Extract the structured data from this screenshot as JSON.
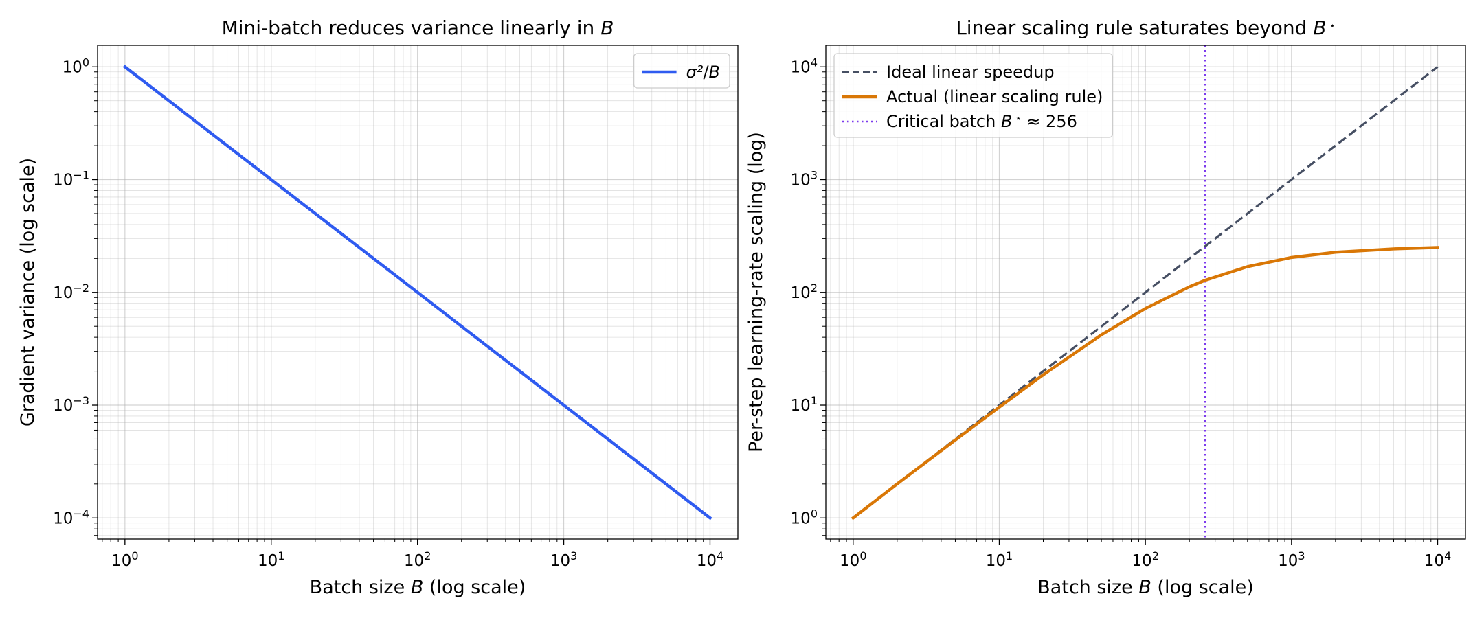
{
  "chart_data": [
    {
      "type": "line",
      "title": "Mini-batch reduces variance linearly in B",
      "xlabel": "Batch size B (log scale)",
      "ylabel": "Gradient variance (log scale)",
      "xscale": "log",
      "yscale": "log",
      "xlim": [
        0.65,
        15500
      ],
      "ylim": [
        6.5e-05,
        1.55
      ],
      "xticks": [
        1,
        10,
        100,
        1000,
        10000
      ],
      "yticks": [
        0.0001,
        0.001,
        0.01,
        0.1,
        1
      ],
      "grid": true,
      "legend_position": "top-right",
      "series": [
        {
          "name": "σ²/B",
          "color": "#2f5bf0",
          "style": "solid",
          "x": [
            1,
            10,
            100,
            1000,
            10000
          ],
          "y": [
            1,
            0.1,
            0.01,
            0.001,
            0.0001
          ]
        }
      ]
    },
    {
      "type": "line",
      "title": "Linear scaling rule saturates beyond B*",
      "xlabel": "Batch size B (log scale)",
      "ylabel": "Per-step learning-rate scaling (log)",
      "xscale": "log",
      "yscale": "log",
      "xlim": [
        0.65,
        15500
      ],
      "ylim": [
        0.65,
        15500
      ],
      "xticks": [
        1,
        10,
        100,
        1000,
        10000
      ],
      "yticks": [
        1,
        10,
        100,
        1000,
        10000
      ],
      "grid": true,
      "legend_position": "top-left",
      "series": [
        {
          "name": "Ideal linear speedup",
          "color": "#464f63",
          "style": "dashed",
          "x": [
            1,
            10,
            100,
            1000,
            10000
          ],
          "y": [
            1,
            10,
            100,
            1000,
            10000
          ]
        },
        {
          "name": "Actual (linear scaling rule)",
          "color": "#d97706",
          "style": "solid",
          "x": [
            1,
            2,
            5,
            10,
            20,
            50,
            100,
            200,
            256,
            500,
            1000,
            2000,
            5000,
            10000
          ],
          "y": [
            1,
            2,
            4.9,
            9.6,
            18.6,
            42,
            72,
            112,
            128,
            169,
            204,
            227,
            243,
            250
          ]
        }
      ],
      "vlines": [
        {
          "name": "Critical batch B* ≈ 256",
          "x": 256,
          "color": "#7c3aed",
          "style": "dotted"
        }
      ]
    }
  ]
}
